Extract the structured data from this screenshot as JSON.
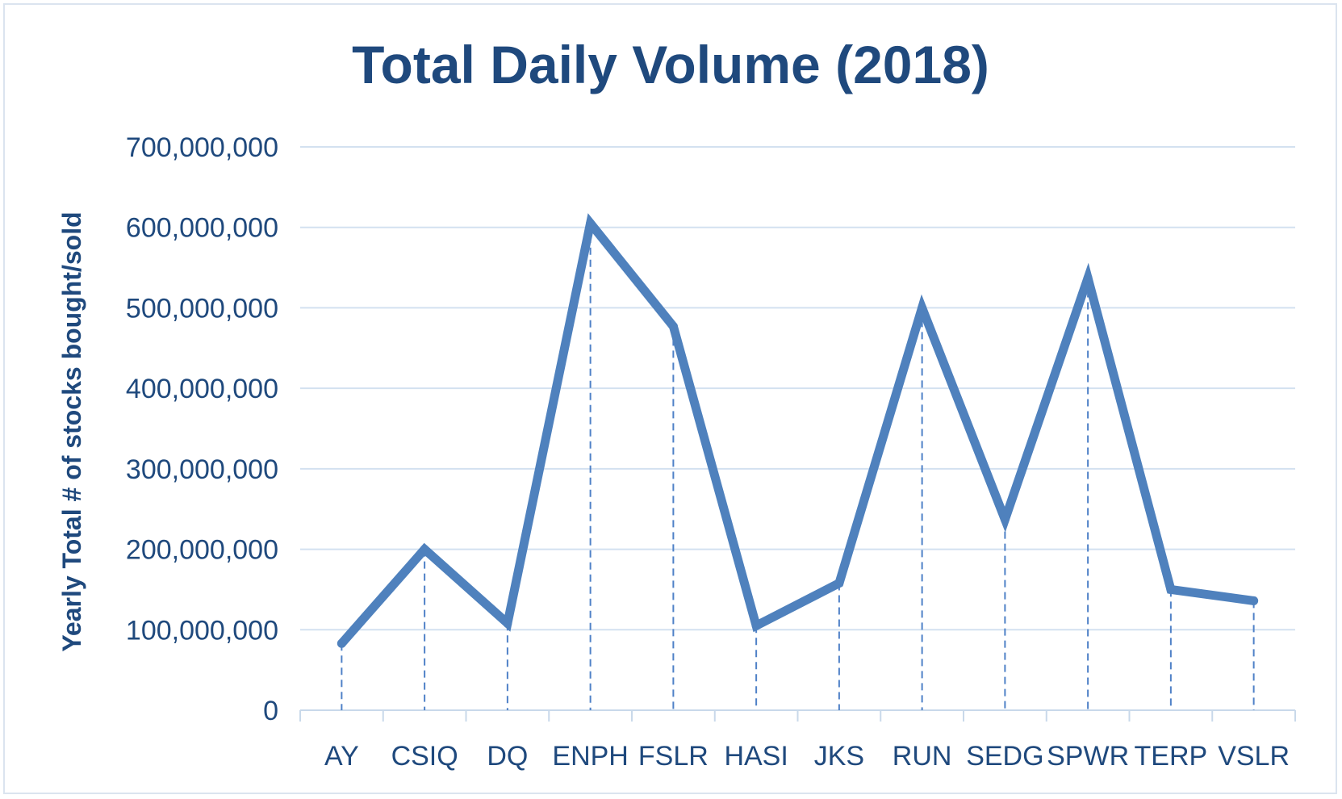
{
  "chart_data": {
    "type": "line",
    "title": "Total Daily Volume (2018)",
    "xlabel": "",
    "ylabel": "Yearly Total # of stocks bought/sold",
    "categories": [
      "AY",
      "CSIQ",
      "DQ",
      "ENPH",
      "FSLR",
      "HASI",
      "JKS",
      "RUN",
      "SEDG",
      "SPWR",
      "TERP",
      "VSLR"
    ],
    "values": [
      83000000,
      200000000,
      108000000,
      605000000,
      477000000,
      105000000,
      158000000,
      500000000,
      237000000,
      537000000,
      150000000,
      136000000
    ],
    "ylim": [
      0,
      700000000
    ],
    "yticks": [
      0,
      100000000,
      200000000,
      300000000,
      400000000,
      500000000,
      600000000,
      700000000
    ],
    "ytick_labels": [
      "0",
      "100,000,000",
      "200,000,000",
      "300,000,000",
      "400,000,000",
      "500,000,000",
      "600,000,000",
      "700,000,000"
    ],
    "grid": true,
    "drop_lines": true,
    "legend": "none",
    "colors": {
      "series": "#4f81bd",
      "text": "#1f497d",
      "grid": "#d3e1f0"
    }
  }
}
